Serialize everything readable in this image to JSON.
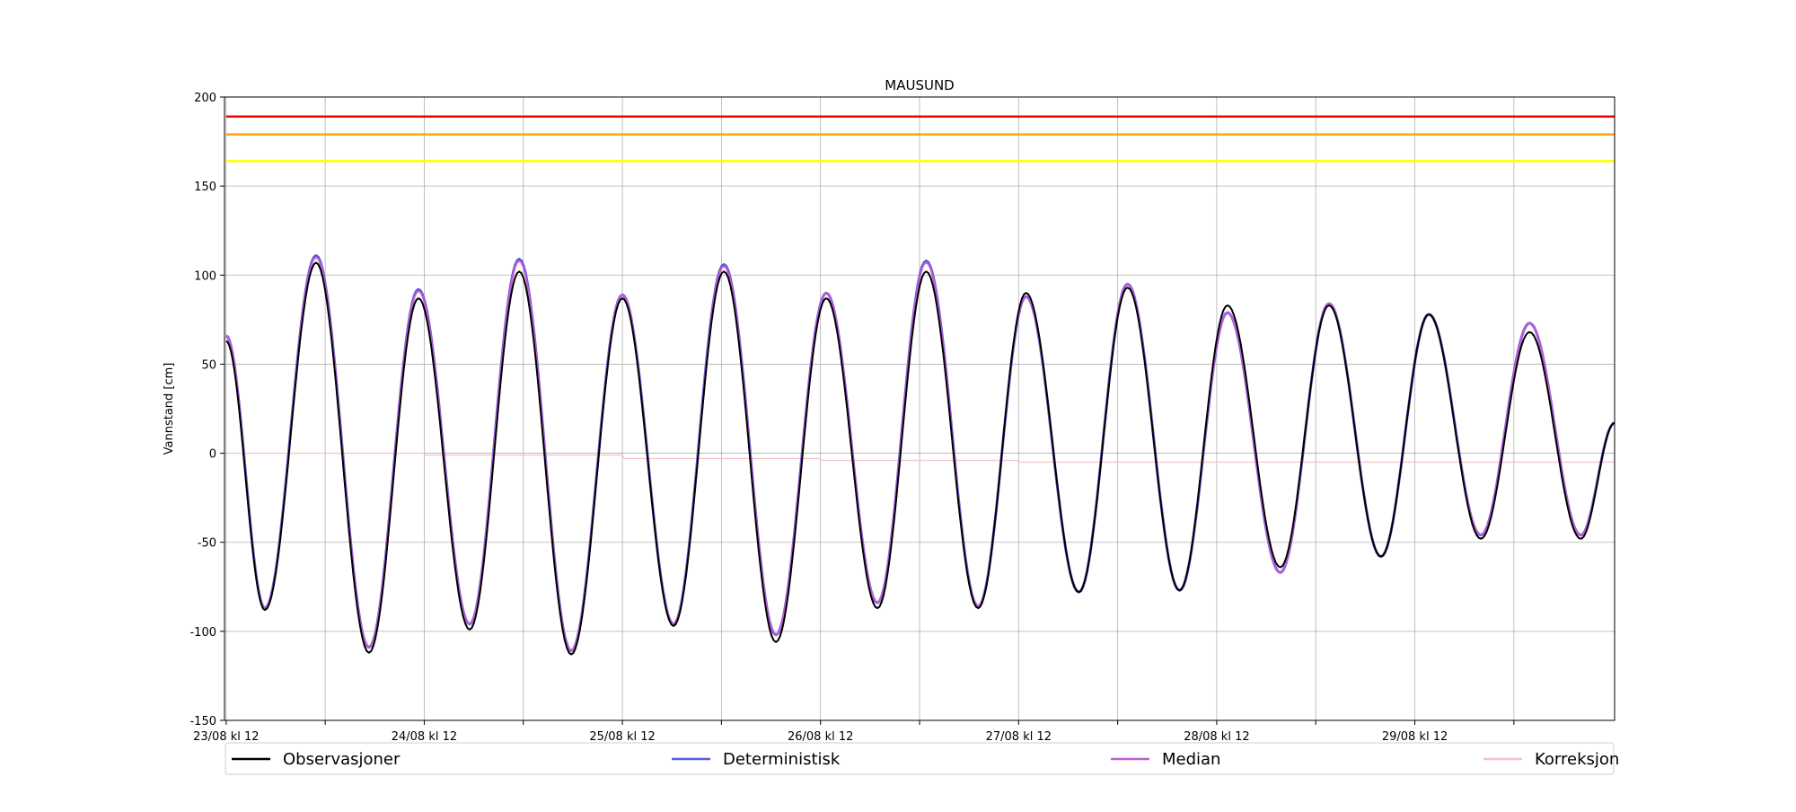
{
  "chart_data": {
    "type": "line",
    "title": "MAUSUND",
    "xlabel": "",
    "ylabel": "Vannstand [cm]",
    "ylim": [
      -150,
      200
    ],
    "xlim_hours": [
      -0.2,
      168.2
    ],
    "yticks": [
      -150,
      -100,
      -50,
      0,
      50,
      100,
      150,
      200
    ],
    "xticks": [
      {
        "label": "23/08 kl 12"
      },
      {
        "label": ""
      },
      {
        "label": "24/08 kl 12"
      },
      {
        "label": ""
      },
      {
        "label": "25/08 kl 12"
      },
      {
        "label": ""
      },
      {
        "label": "26/08 kl 12"
      },
      {
        "label": ""
      },
      {
        "label": "27/08 kl 12"
      },
      {
        "label": ""
      },
      {
        "label": "28/08 kl 12"
      },
      {
        "label": ""
      },
      {
        "label": "29/08 kl 12"
      },
      {
        "label": ""
      }
    ],
    "grid": true,
    "legend_position": "bottom",
    "thresholds": [
      {
        "value": 189,
        "color": "#ff0000"
      },
      {
        "value": 179,
        "color": "#ffa500"
      },
      {
        "value": 164,
        "color": "#ffff00"
      }
    ],
    "series": [
      {
        "name": "Observasjoner",
        "color": "#000000",
        "extrema": [
          [
            0,
            63
          ],
          [
            4.7,
            -88
          ],
          [
            10.9,
            107
          ],
          [
            17.3,
            -112
          ],
          [
            23.3,
            87
          ],
          [
            29.5,
            -99
          ],
          [
            35.5,
            102
          ],
          [
            41.8,
            -113
          ],
          [
            48,
            87
          ],
          [
            54.2,
            -97
          ],
          [
            60.3,
            102
          ],
          [
            66.6,
            -106
          ],
          [
            72.7,
            87
          ],
          [
            78.9,
            -87
          ],
          [
            84.8,
            102
          ],
          [
            91.1,
            -87
          ],
          [
            96.9,
            90
          ],
          [
            103.3,
            -78
          ],
          [
            109.2,
            93
          ],
          [
            115.5,
            -77
          ],
          [
            121.3,
            83
          ],
          [
            127.7,
            -64
          ],
          [
            133.6,
            83
          ],
          [
            139.9,
            -58
          ],
          [
            145.7,
            78
          ],
          [
            152,
            -48
          ],
          [
            157.9,
            68
          ],
          [
            164.1,
            -48
          ],
          [
            168.2,
            17
          ]
        ]
      },
      {
        "name": "Deterministisk",
        "color": "#5b5bd6",
        "extrema": [
          [
            0,
            66
          ],
          [
            4.7,
            -87
          ],
          [
            10.9,
            111
          ],
          [
            17.3,
            -109
          ],
          [
            23.3,
            92
          ],
          [
            29.5,
            -96
          ],
          [
            35.5,
            109
          ],
          [
            41.8,
            -111
          ],
          [
            48,
            89
          ],
          [
            54.2,
            -96
          ],
          [
            60.3,
            106
          ],
          [
            66.6,
            -102
          ],
          [
            72.7,
            90
          ],
          [
            78.9,
            -84
          ],
          [
            84.8,
            108
          ],
          [
            91.1,
            -86
          ],
          [
            96.9,
            88
          ],
          [
            103.3,
            -78
          ],
          [
            109.2,
            95
          ],
          [
            115.5,
            -77
          ],
          [
            121.3,
            79
          ],
          [
            127.7,
            -67
          ],
          [
            133.6,
            84
          ],
          [
            139.9,
            -58
          ],
          [
            145.7,
            78
          ],
          [
            152,
            -46
          ],
          [
            157.9,
            73
          ],
          [
            164.1,
            -46
          ],
          [
            168.2,
            17
          ]
        ]
      },
      {
        "name": "Median",
        "color": "#c35bd8",
        "extrema": [
          [
            0,
            66
          ],
          [
            4.7,
            -87
          ],
          [
            10.9,
            110
          ],
          [
            17.3,
            -109
          ],
          [
            23.3,
            91
          ],
          [
            29.5,
            -96
          ],
          [
            35.5,
            108
          ],
          [
            41.8,
            -111
          ],
          [
            48,
            89
          ],
          [
            54.2,
            -96
          ],
          [
            60.3,
            105
          ],
          [
            66.6,
            -102
          ],
          [
            72.7,
            90
          ],
          [
            78.9,
            -84
          ],
          [
            84.8,
            107
          ],
          [
            91.1,
            -86
          ],
          [
            96.9,
            88
          ],
          [
            103.3,
            -78
          ],
          [
            109.2,
            95
          ],
          [
            115.5,
            -77
          ],
          [
            121.3,
            79
          ],
          [
            127.7,
            -67
          ],
          [
            133.6,
            84
          ],
          [
            139.9,
            -58
          ],
          [
            145.7,
            78
          ],
          [
            152,
            -46
          ],
          [
            157.9,
            73
          ],
          [
            164.1,
            -46
          ],
          [
            168.2,
            17
          ]
        ]
      },
      {
        "name": "Korreksjon",
        "color": "#f4c3c8",
        "steps": [
          [
            0,
            0
          ],
          [
            24,
            0
          ],
          [
            24.2,
            -1
          ],
          [
            48,
            -1
          ],
          [
            48.2,
            -3
          ],
          [
            72,
            -3
          ],
          [
            72.2,
            -4
          ],
          [
            96,
            -4
          ],
          [
            96.2,
            -5
          ],
          [
            168.2,
            -5
          ]
        ]
      }
    ]
  }
}
